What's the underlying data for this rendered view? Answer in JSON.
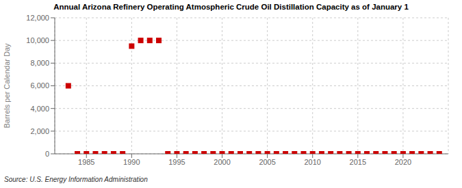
{
  "chart_data": {
    "type": "scatter",
    "title": "Annual Arizona Refinery Operating Atmospheric Crude Oil Distillation Capacity as of January 1",
    "ylabel": "Barrels per Calendar Day",
    "source": "Source: U.S. Energy Information Administration",
    "x": [
      1983,
      1984,
      1985,
      1986,
      1987,
      1988,
      1989,
      1990,
      1991,
      1992,
      1993,
      1994,
      1995,
      1996,
      1997,
      1998,
      1999,
      2000,
      2001,
      2002,
      2003,
      2004,
      2005,
      2006,
      2007,
      2008,
      2009,
      2010,
      2011,
      2012,
      2013,
      2014,
      2015,
      2016,
      2017,
      2018,
      2019,
      2020,
      2021,
      2022,
      2023,
      2024
    ],
    "values": [
      6000,
      0,
      0,
      0,
      0,
      0,
      0,
      9500,
      10000,
      10000,
      10000,
      0,
      0,
      0,
      0,
      0,
      0,
      0,
      0,
      0,
      0,
      0,
      0,
      0,
      0,
      0,
      0,
      0,
      0,
      0,
      0,
      0,
      0,
      0,
      0,
      0,
      0,
      0,
      0,
      0,
      0,
      0
    ],
    "color": "#cc0000",
    "marker": "square",
    "xlim": [
      1981.5,
      2025
    ],
    "xticks": [
      1985,
      1990,
      1995,
      2000,
      2005,
      2010,
      2015,
      2020
    ],
    "ylim": [
      0,
      12000
    ],
    "yticks": [
      0,
      {
        "value": 2000,
        "label": "2,000"
      },
      {
        "value": 4000,
        "label": "4,000"
      },
      {
        "value": 6000,
        "label": "6,000"
      },
      {
        "value": 8000,
        "label": "8,000"
      },
      {
        "value": 10000,
        "label": "10,000"
      },
      {
        "value": 12000,
        "label": "12,000"
      }
    ],
    "grid": true
  }
}
